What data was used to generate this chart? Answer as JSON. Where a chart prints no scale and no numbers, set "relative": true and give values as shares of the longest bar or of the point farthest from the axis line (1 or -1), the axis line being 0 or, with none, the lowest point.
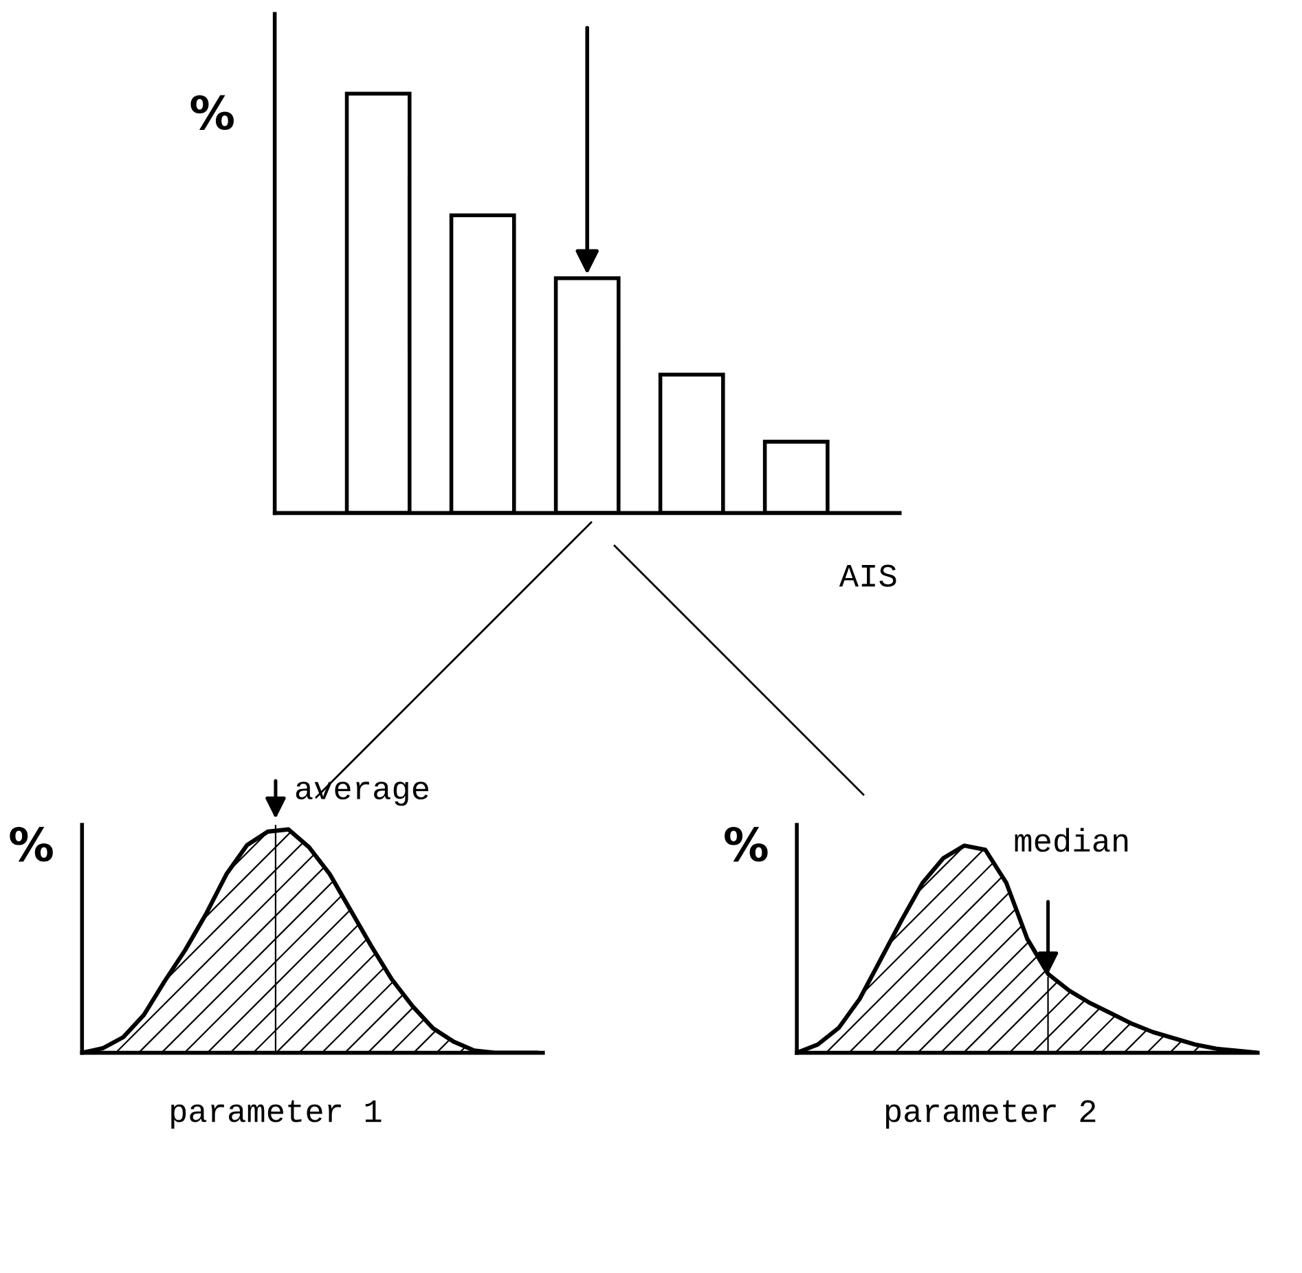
{
  "chart_data": [
    {
      "type": "bar",
      "relative": true,
      "ylabel": "%",
      "xlabel": "AIS",
      "categories": [
        null,
        null,
        null,
        null,
        null
      ],
      "values": [
        1,
        0.71,
        0.56,
        0.33,
        0.17
      ],
      "color": "#ffffff"
    },
    {
      "type": "area",
      "relative": true,
      "ylabel": "%",
      "xlabel": "parameter 1",
      "categories": [
        null,
        null,
        null,
        null,
        null,
        null,
        null,
        null,
        null,
        null,
        null,
        null,
        null,
        null,
        null,
        null,
        null,
        null,
        null,
        null,
        null,
        null,
        null
      ],
      "values": [
        0,
        0.02,
        0.07,
        0.17,
        0.32,
        0.46,
        0.62,
        0.8,
        0.93,
        0.99,
        1.0,
        0.92,
        0.8,
        0.64,
        0.48,
        0.33,
        0.21,
        0.11,
        0.05,
        0.01,
        0,
        0,
        0
      ],
      "color": "#ffffff",
      "annotations": [
        "average"
      ]
    },
    {
      "type": "area",
      "relative": true,
      "ylabel": "%",
      "xlabel": "parameter 2",
      "categories": [
        null,
        null,
        null,
        null,
        null,
        null,
        null,
        null,
        null,
        null,
        null,
        null,
        null,
        null,
        null,
        null,
        null,
        null,
        null,
        null,
        null,
        null,
        null
      ],
      "values": [
        0,
        0.04,
        0.12,
        0.26,
        0.45,
        0.64,
        0.82,
        0.94,
        1.0,
        0.98,
        0.82,
        0.55,
        0.38,
        0.3,
        0.24,
        0.19,
        0.14,
        0.1,
        0.07,
        0.04,
        0.02,
        0.01,
        0
      ],
      "color": "#ffffff",
      "annotations": [
        "median"
      ]
    }
  ]
}
